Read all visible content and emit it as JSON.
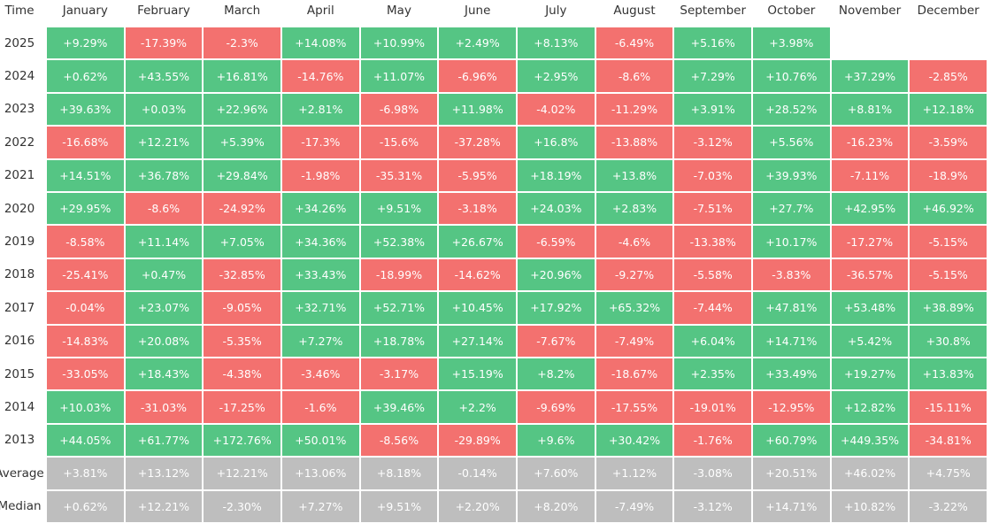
{
  "table": {
    "header": [
      "Time",
      "January",
      "February",
      "March",
      "April",
      "May",
      "June",
      "July",
      "August",
      "September",
      "October",
      "November",
      "December"
    ],
    "rows": [
      {
        "label": "2025",
        "cells": [
          "+9.29%",
          "-17.39%",
          "-2.3%",
          "+14.08%",
          "+10.99%",
          "+2.49%",
          "+8.13%",
          "-6.49%",
          "+5.16%",
          "+3.98%"
        ]
      },
      {
        "label": "2024",
        "cells": [
          "+0.62%",
          "+43.55%",
          "+16.81%",
          "-14.76%",
          "+11.07%",
          "-6.96%",
          "+2.95%",
          "-8.6%",
          "+7.29%",
          "+10.76%",
          "+37.29%",
          "-2.85%"
        ]
      },
      {
        "label": "2023",
        "cells": [
          "+39.63%",
          "+0.03%",
          "+22.96%",
          "+2.81%",
          "-6.98%",
          "+11.98%",
          "-4.02%",
          "-11.29%",
          "+3.91%",
          "+28.52%",
          "+8.81%",
          "+12.18%"
        ]
      },
      {
        "label": "2022",
        "cells": [
          "-16.68%",
          "+12.21%",
          "+5.39%",
          "-17.3%",
          "-15.6%",
          "-37.28%",
          "+16.8%",
          "-13.88%",
          "-3.12%",
          "+5.56%",
          "-16.23%",
          "-3.59%"
        ]
      },
      {
        "label": "2021",
        "cells": [
          "+14.51%",
          "+36.78%",
          "+29.84%",
          "-1.98%",
          "-35.31%",
          "-5.95%",
          "+18.19%",
          "+13.8%",
          "-7.03%",
          "+39.93%",
          "-7.11%",
          "-18.9%"
        ]
      },
      {
        "label": "2020",
        "cells": [
          "+29.95%",
          "-8.6%",
          "-24.92%",
          "+34.26%",
          "+9.51%",
          "-3.18%",
          "+24.03%",
          "+2.83%",
          "-7.51%",
          "+27.7%",
          "+42.95%",
          "+46.92%"
        ]
      },
      {
        "label": "2019",
        "cells": [
          "-8.58%",
          "+11.14%",
          "+7.05%",
          "+34.36%",
          "+52.38%",
          "+26.67%",
          "-6.59%",
          "-4.6%",
          "-13.38%",
          "+10.17%",
          "-17.27%",
          "-5.15%"
        ]
      },
      {
        "label": "2018",
        "cells": [
          "-25.41%",
          "+0.47%",
          "-32.85%",
          "+33.43%",
          "-18.99%",
          "-14.62%",
          "+20.96%",
          "-9.27%",
          "-5.58%",
          "-3.83%",
          "-36.57%",
          "-5.15%"
        ]
      },
      {
        "label": "2017",
        "cells": [
          "-0.04%",
          "+23.07%",
          "-9.05%",
          "+32.71%",
          "+52.71%",
          "+10.45%",
          "+17.92%",
          "+65.32%",
          "-7.44%",
          "+47.81%",
          "+53.48%",
          "+38.89%"
        ]
      },
      {
        "label": "2016",
        "cells": [
          "-14.83%",
          "+20.08%",
          "-5.35%",
          "+7.27%",
          "+18.78%",
          "+27.14%",
          "-7.67%",
          "-7.49%",
          "+6.04%",
          "+14.71%",
          "+5.42%",
          "+30.8%"
        ]
      },
      {
        "label": "2015",
        "cells": [
          "-33.05%",
          "+18.43%",
          "-4.38%",
          "-3.46%",
          "-3.17%",
          "+15.19%",
          "+8.2%",
          "-18.67%",
          "+2.35%",
          "+33.49%",
          "+19.27%",
          "+13.83%"
        ]
      },
      {
        "label": "2014",
        "cells": [
          "+10.03%",
          "-31.03%",
          "-17.25%",
          "-1.6%",
          "+39.46%",
          "+2.2%",
          "-9.69%",
          "-17.55%",
          "-19.01%",
          "-12.95%",
          "+12.82%",
          "-15.11%"
        ]
      },
      {
        "label": "2013",
        "cells": [
          "+44.05%",
          "+61.77%",
          "+172.76%",
          "+50.01%",
          "-8.56%",
          "-29.89%",
          "+9.6%",
          "+30.42%",
          "-1.76%",
          "+60.79%",
          "+449.35%",
          "-34.81%"
        ]
      }
    ],
    "summary_rows": [
      {
        "label": "Average",
        "cells": [
          "+3.81%",
          "+13.12%",
          "+12.21%",
          "+13.06%",
          "+8.18%",
          "-0.14%",
          "+7.60%",
          "+1.12%",
          "-3.08%",
          "+20.51%",
          "+46.02%",
          "+4.75%"
        ]
      },
      {
        "label": "Median",
        "cells": [
          "+0.62%",
          "+12.21%",
          "-2.30%",
          "+7.27%",
          "+9.51%",
          "+2.20%",
          "+8.20%",
          "-7.49%",
          "-3.12%",
          "+14.71%",
          "+10.82%",
          "-3.22%"
        ]
      }
    ]
  }
}
